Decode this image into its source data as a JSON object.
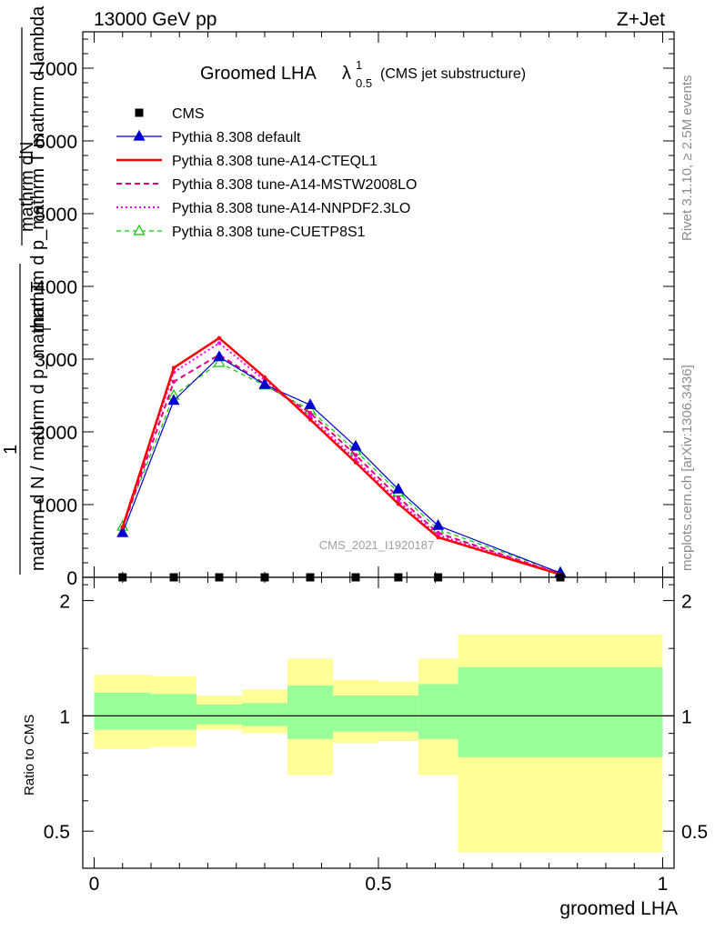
{
  "header": {
    "left": "13000 GeV pp",
    "right": "Z+Jet"
  },
  "side": {
    "rivet": "Rivet 3.1.10, ≥ 2.5M events",
    "mcplots": "mcplots.cern.ch [arXiv:1306.3436]"
  },
  "watermark": "CMS_2021_I1920187",
  "chart_data": [
    {
      "type": "line",
      "title": {
        "main": "Groomed LHA",
        "lambda": "λ",
        "sup": "1",
        "sub": "0.5",
        "note": "(CMS jet substructure)"
      },
      "ylabel": {
        "numerator_1": "mathrm d",
        "numerator_2": "N",
        "denominator": "mathrm d p_mathrm T mathrm d lambda",
        "prefix": "1",
        "prefix_denominator": "mathrm d N / mathrm d p_mathrm T",
        "subscript": "T"
      },
      "ylim": [
        0,
        7500
      ],
      "yticks": [
        0,
        1000,
        2000,
        3000,
        4000,
        5000,
        6000,
        7000
      ],
      "ytick_labels": [
        "0",
        "1000",
        "2000",
        "3000",
        "4000",
        "5000",
        "6000",
        "7000"
      ],
      "xlim": [
        -0.02,
        1.02
      ],
      "x": [
        0.05,
        0.14,
        0.22,
        0.3,
        0.38,
        0.46,
        0.535,
        0.605,
        0.82
      ],
      "series": [
        {
          "name": "CMS",
          "color": "#000000",
          "style": "marker-square",
          "values": [
            0,
            0,
            0,
            0,
            0,
            0,
            0,
            0,
            0
          ]
        },
        {
          "name": "Pythia 8.308 default",
          "color": "#0000cc",
          "style": "solid-triangle",
          "values": [
            610,
            2430,
            3030,
            2650,
            2370,
            1800,
            1210,
            710,
            60
          ]
        },
        {
          "name": "Pythia 8.308 tune-A14-CTEQL1",
          "color": "#ff0000",
          "style": "thick-solid",
          "values": [
            690,
            2880,
            3290,
            2750,
            2170,
            1580,
            1010,
            550,
            40
          ]
        },
        {
          "name": "Pythia 8.308 tune-A14-MSTW2008LO",
          "color": "#e6007e",
          "style": "dashed",
          "values": [
            670,
            2690,
            3060,
            2660,
            2260,
            1680,
            1100,
            610,
            45
          ]
        },
        {
          "name": "Pythia 8.308 tune-A14-NNPDF2.3LO",
          "color": "#ff00ff",
          "style": "dotted",
          "values": [
            680,
            2820,
            3220,
            2710,
            2210,
            1620,
            1050,
            580,
            45
          ]
        },
        {
          "name": "Pythia 8.308 tune-CUETP8S1",
          "color": "#00cc00",
          "style": "dashed-open-triangle",
          "values": [
            700,
            2500,
            2950,
            2640,
            2300,
            1740,
            1170,
            660,
            65
          ]
        }
      ]
    },
    {
      "type": "area",
      "ylabel": "Ratio to CMS",
      "xlabel": "groomed LHA",
      "ylim": [
        0.4,
        2.3
      ],
      "yticks": [
        0.5,
        1,
        2
      ],
      "ytick_labels": [
        "0.5",
        "1",
        "2"
      ],
      "xticks": [
        0,
        0.5,
        1
      ],
      "xtick_labels": [
        "0",
        "0.5",
        "1"
      ],
      "bins": [
        {
          "lo": 0.0,
          "hi": 0.1,
          "in_lo": 0.92,
          "in_hi": 1.15,
          "out_lo": 0.82,
          "out_hi": 1.28
        },
        {
          "lo": 0.1,
          "hi": 0.18,
          "in_lo": 0.92,
          "in_hi": 1.14,
          "out_lo": 0.83,
          "out_hi": 1.27
        },
        {
          "lo": 0.18,
          "hi": 0.26,
          "in_lo": 0.95,
          "in_hi": 1.07,
          "out_lo": 0.92,
          "out_hi": 1.13
        },
        {
          "lo": 0.26,
          "hi": 0.34,
          "in_lo": 0.94,
          "in_hi": 1.08,
          "out_lo": 0.9,
          "out_hi": 1.17
        },
        {
          "lo": 0.34,
          "hi": 0.42,
          "in_lo": 0.87,
          "in_hi": 1.2,
          "out_lo": 0.7,
          "out_hi": 1.41
        },
        {
          "lo": 0.42,
          "hi": 0.5,
          "in_lo": 0.91,
          "in_hi": 1.13,
          "out_lo": 0.85,
          "out_hi": 1.24
        },
        {
          "lo": 0.5,
          "hi": 0.57,
          "in_lo": 0.91,
          "in_hi": 1.13,
          "out_lo": 0.86,
          "out_hi": 1.23
        },
        {
          "lo": 0.57,
          "hi": 0.64,
          "in_lo": 0.87,
          "in_hi": 1.21,
          "out_lo": 0.7,
          "out_hi": 1.41
        },
        {
          "lo": 0.64,
          "hi": 1.0,
          "in_lo": 0.78,
          "in_hi": 1.34,
          "out_lo": 0.44,
          "out_hi": 1.63
        }
      ],
      "band_colors": {
        "inner": "#99ff99",
        "outer": "#ffff99"
      },
      "reference": 1
    }
  ]
}
